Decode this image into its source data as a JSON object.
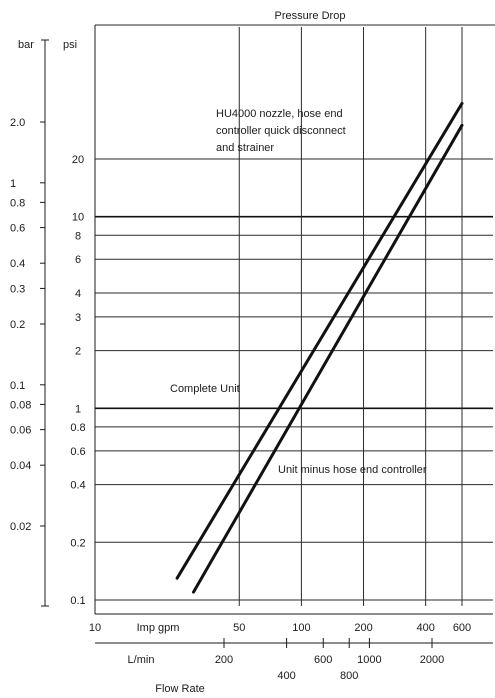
{
  "chart_data": {
    "type": "line",
    "title": "Pressure Drop",
    "xlabel": "Flow Rate",
    "y_scale": "log",
    "x_scale": "log",
    "psi_axis": {
      "label": "psi",
      "ticks": [
        "0.1",
        "0.2",
        "0.4",
        "0.6",
        "0.8",
        "1",
        "2",
        "3",
        "4",
        "6",
        "8",
        "10",
        "20"
      ],
      "tick_values": [
        0.1,
        0.2,
        0.4,
        0.6,
        0.8,
        1,
        2,
        3,
        4,
        6,
        8,
        10,
        20
      ]
    },
    "bar_axis": {
      "label": "bar",
      "ticks": [
        "0.02",
        "0.04",
        "0.06",
        "0.08",
        "0.1",
        "0.2",
        "0.3",
        "0.4",
        "0.6",
        "0.8",
        "1",
        "2.0"
      ],
      "tick_values": [
        0.02,
        0.04,
        0.06,
        0.08,
        0.1,
        0.2,
        0.3,
        0.4,
        0.6,
        0.8,
        1,
        2
      ]
    },
    "gpm_axis": {
      "label": "Imp gpm",
      "ticks": [
        "10",
        "50",
        "100",
        "200",
        "400",
        "600"
      ],
      "tick_values": [
        10,
        50,
        100,
        200,
        400,
        600
      ]
    },
    "lmin_axis": {
      "label": "L/min",
      "ticks": [
        "200",
        "400",
        "600",
        "800",
        "1000",
        "2000"
      ],
      "tick_values": [
        200,
        400,
        600,
        800,
        1000,
        2000
      ]
    },
    "series": [
      {
        "name": "Complete Unit",
        "x": [
          25,
          600
        ],
        "y": [
          0.13,
          39
        ]
      },
      {
        "name": "Unit minus hose end controller",
        "x": [
          30,
          600
        ],
        "y": [
          0.11,
          30
        ]
      }
    ],
    "annotations": [
      {
        "lines": [
          "HU4000 nozzle, hose end",
          "controller quick disconnect",
          "and strainer"
        ]
      }
    ]
  }
}
